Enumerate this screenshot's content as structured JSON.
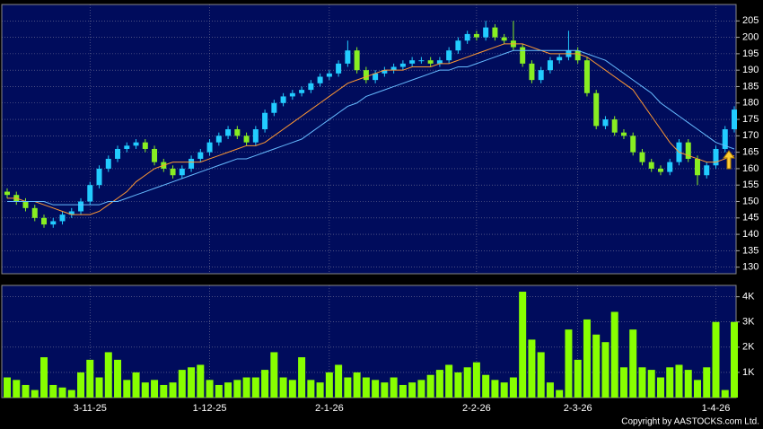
{
  "chart_data": [
    {
      "type": "candlestick",
      "categories": [
        null,
        null,
        null,
        null,
        null,
        null,
        null,
        null,
        null,
        "3-11-25",
        null,
        null,
        null,
        null,
        null,
        null,
        null,
        null,
        null,
        null,
        null,
        null,
        "1-12-25",
        null,
        null,
        null,
        null,
        null,
        null,
        null,
        null,
        null,
        null,
        null,
        null,
        "2-1-26",
        null,
        null,
        null,
        null,
        null,
        null,
        null,
        null,
        null,
        null,
        null,
        null,
        null,
        null,
        null,
        "2-2-26",
        null,
        null,
        null,
        null,
        null,
        null,
        null,
        null,
        null,
        null,
        "2-3-26",
        null,
        null,
        null,
        null,
        null,
        null,
        null,
        null,
        null,
        null,
        null,
        null,
        null,
        null,
        "1-4-26",
        null,
        null
      ],
      "ohlc": [
        [
          153,
          154,
          151,
          152
        ],
        [
          152,
          153,
          149,
          150
        ],
        [
          150,
          151,
          147,
          148
        ],
        [
          148,
          149,
          144,
          145
        ],
        [
          145,
          146,
          142,
          143
        ],
        [
          143,
          145,
          142,
          144
        ],
        [
          144,
          147,
          143,
          146
        ],
        [
          146,
          148,
          145,
          147
        ],
        [
          147,
          151,
          146,
          150
        ],
        [
          150,
          156,
          149,
          155
        ],
        [
          155,
          161,
          154,
          160
        ],
        [
          160,
          164,
          159,
          163
        ],
        [
          163,
          167,
          162,
          166
        ],
        [
          166,
          168,
          165,
          167
        ],
        [
          167,
          169,
          166,
          168
        ],
        [
          168,
          169,
          165,
          166
        ],
        [
          166,
          167,
          161,
          162
        ],
        [
          162,
          163,
          159,
          160
        ],
        [
          160,
          161,
          157,
          158
        ],
        [
          158,
          161,
          157,
          160
        ],
        [
          160,
          164,
          159,
          163
        ],
        [
          163,
          166,
          162,
          165
        ],
        [
          165,
          169,
          164,
          168
        ],
        [
          168,
          171,
          167,
          170
        ],
        [
          170,
          173,
          169,
          172
        ],
        [
          172,
          173,
          169,
          170
        ],
        [
          170,
          171,
          167,
          168
        ],
        [
          168,
          173,
          167,
          172
        ],
        [
          172,
          178,
          171,
          177
        ],
        [
          177,
          181,
          176,
          180
        ],
        [
          180,
          183,
          179,
          182
        ],
        [
          182,
          184,
          181,
          183
        ],
        [
          183,
          185,
          182,
          184
        ],
        [
          184,
          187,
          183,
          186
        ],
        [
          186,
          189,
          185,
          188
        ],
        [
          188,
          190,
          187,
          189
        ],
        [
          189,
          193,
          188,
          192
        ],
        [
          192,
          199,
          191,
          196
        ],
        [
          196,
          197,
          189,
          190
        ],
        [
          190,
          191,
          186,
          187
        ],
        [
          187,
          190,
          186,
          189
        ],
        [
          189,
          191,
          188,
          190
        ],
        [
          190,
          192,
          189,
          191
        ],
        [
          191,
          193,
          190,
          192
        ],
        [
          192,
          194,
          191,
          193
        ],
        [
          193,
          194,
          192,
          193
        ],
        [
          193,
          194,
          191,
          192
        ],
        [
          192,
          194,
          191,
          193
        ],
        [
          193,
          197,
          192,
          196
        ],
        [
          196,
          200,
          195,
          199
        ],
        [
          199,
          202,
          198,
          201
        ],
        [
          201,
          202,
          199,
          200
        ],
        [
          200,
          205,
          199,
          203
        ],
        [
          203,
          204,
          199,
          200
        ],
        [
          200,
          201,
          198,
          199
        ],
        [
          199,
          205,
          196,
          197
        ],
        [
          197,
          198,
          191,
          192
        ],
        [
          192,
          193,
          186,
          187
        ],
        [
          187,
          191,
          186,
          190
        ],
        [
          190,
          194,
          189,
          193
        ],
        [
          193,
          195,
          192,
          194
        ],
        [
          194,
          202,
          193,
          196
        ],
        [
          196,
          197,
          192,
          193
        ],
        [
          193,
          194,
          182,
          183
        ],
        [
          183,
          184,
          172,
          173
        ],
        [
          173,
          176,
          172,
          175
        ],
        [
          175,
          176,
          170,
          171
        ],
        [
          171,
          172,
          169,
          170
        ],
        [
          170,
          171,
          164,
          165
        ],
        [
          165,
          166,
          161,
          162
        ],
        [
          162,
          163,
          159,
          160
        ],
        [
          160,
          161,
          158,
          159
        ],
        [
          159,
          163,
          158,
          162
        ],
        [
          162,
          169,
          161,
          168
        ],
        [
          168,
          169,
          162,
          163
        ],
        [
          163,
          164,
          155,
          158
        ],
        [
          158,
          162,
          157,
          161
        ],
        [
          161,
          167,
          160,
          166
        ],
        [
          166,
          173,
          165,
          172
        ],
        [
          172,
          179,
          171,
          178
        ]
      ],
      "up_color": "#22ccff",
      "down_color": "#88ee22",
      "series": [
        {
          "color": "#ff9933",
          "values": [
            151,
            151,
            150,
            150,
            149,
            148,
            147,
            146,
            146,
            146,
            147,
            149,
            151,
            153,
            156,
            158,
            160,
            161,
            162,
            162,
            162,
            162,
            163,
            164,
            165,
            166,
            167,
            167,
            168,
            170,
            172,
            174,
            176,
            178,
            180,
            182,
            184,
            186,
            187,
            188,
            189,
            190,
            190,
            190,
            191,
            191,
            191,
            192,
            192,
            193,
            194,
            195,
            196,
            197,
            198,
            198,
            198,
            197,
            196,
            195,
            195,
            195,
            195,
            194,
            192,
            190,
            188,
            186,
            184,
            180,
            176,
            172,
            168,
            165,
            164,
            163,
            162,
            162,
            163,
            164
          ]
        },
        {
          "color": "#66bbff",
          "values": [
            150,
            150,
            150,
            150,
            150,
            149,
            149,
            149,
            149,
            149,
            149,
            150,
            150,
            151,
            152,
            153,
            154,
            155,
            156,
            157,
            158,
            159,
            160,
            161,
            162,
            163,
            163,
            164,
            165,
            166,
            167,
            168,
            169,
            171,
            173,
            175,
            177,
            179,
            180,
            182,
            183,
            184,
            185,
            186,
            187,
            188,
            189,
            190,
            190,
            191,
            191,
            192,
            193,
            194,
            195,
            196,
            196,
            196,
            196,
            196,
            196,
            196,
            196,
            195,
            194,
            193,
            191,
            189,
            187,
            185,
            183,
            180,
            178,
            176,
            174,
            172,
            170,
            168,
            167,
            166
          ]
        }
      ],
      "ylim": [
        128,
        210
      ],
      "yticks": [
        130,
        135,
        140,
        145,
        150,
        155,
        160,
        165,
        170,
        175,
        180,
        185,
        190,
        195,
        200,
        205
      ],
      "grid": true
    },
    {
      "type": "bar",
      "color": "#88ff00",
      "values": [
        800,
        700,
        500,
        300,
        1600,
        500,
        400,
        300,
        1000,
        1500,
        800,
        1800,
        1500,
        700,
        1000,
        600,
        700,
        500,
        600,
        1100,
        1200,
        1300,
        700,
        500,
        600,
        700,
        800,
        800,
        1100,
        1800,
        800,
        700,
        1600,
        700,
        600,
        1000,
        1300,
        800,
        1000,
        800,
        700,
        600,
        800,
        500,
        600,
        700,
        900,
        1100,
        1300,
        1000,
        1200,
        1400,
        900,
        700,
        600,
        800,
        4200,
        2300,
        1800,
        600,
        300,
        2700,
        1500,
        3100,
        2500,
        2200,
        3400,
        1200,
        2700,
        1200,
        1100,
        800,
        1200,
        1300,
        1100,
        700,
        1200,
        3000,
        300,
        3000
      ],
      "ylim": [
        0,
        4450
      ],
      "yticks": [
        {
          "value": 1000,
          "label": "1K"
        },
        {
          "value": 2000,
          "label": "2K"
        },
        {
          "value": 3000,
          "label": "3K"
        },
        {
          "value": 4000,
          "label": "4K"
        }
      ],
      "grid": true
    }
  ],
  "copyright": "Copyright by AASTOCKS.com Ltd."
}
